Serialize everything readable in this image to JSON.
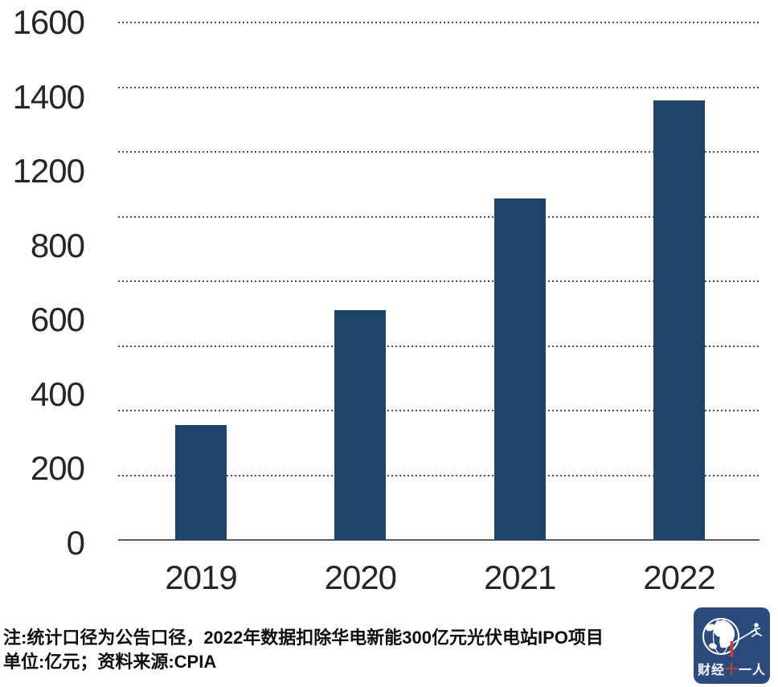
{
  "chart_data": {
    "type": "bar",
    "title": "",
    "categories": [
      "2019",
      "2020",
      "2021",
      "2022"
    ],
    "values": [
      355,
      710,
      1055,
      1360
    ],
    "unit": "亿元",
    "xlabel": "",
    "ylabel": "",
    "ylim": [
      0,
      1600
    ],
    "y_tick_labels_displayed": [
      "1600",
      "1400",
      "1200",
      "800",
      "600",
      "400",
      "200",
      "0"
    ],
    "gridline_values": [
      1600,
      1400,
      1200,
      1000,
      800,
      600,
      400,
      200
    ],
    "grid": "horizontal-dotted",
    "legend_position": "none",
    "bar_color": "#1F446B"
  },
  "footer": {
    "note_line1": "注:统计口径为公告口径，2022年数据扣除华电新能300亿元光伏电站IPO项目",
    "note_line2": "单位:亿元；资料来源:CPIA"
  },
  "logo": {
    "name": "财经十一人",
    "text_left": "财经",
    "text_accent": "十",
    "text_right": "一人",
    "bg_color": "#2B4A7E",
    "accent_color": "#D23B31"
  }
}
